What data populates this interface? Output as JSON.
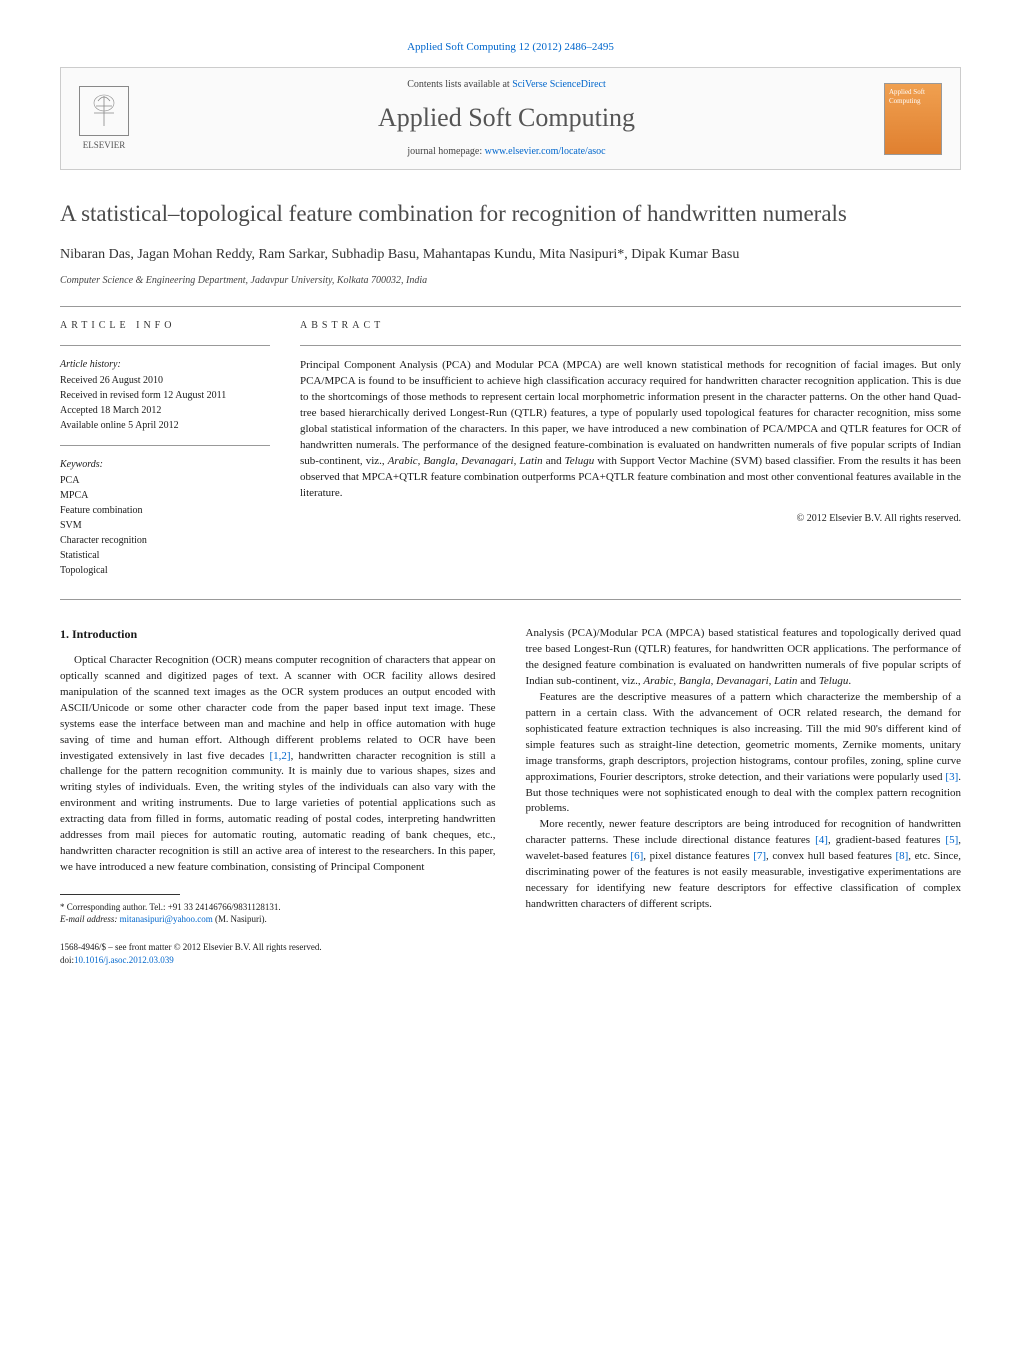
{
  "header": {
    "citation": "Applied Soft Computing 12 (2012) 2486–2495",
    "contents_prefix": "Contents lists available at ",
    "contents_link": "SciVerse ScienceDirect",
    "journal_name": "Applied Soft Computing",
    "homepage_prefix": "journal homepage: ",
    "homepage_url": "www.elsevier.com/locate/asoc",
    "publisher_name": "ELSEVIER",
    "cover_text": "Applied Soft Computing"
  },
  "article": {
    "title": "A statistical–topological feature combination for recognition of handwritten numerals",
    "authors": "Nibaran Das, Jagan Mohan Reddy, Ram Sarkar, Subhadip Basu, Mahantapas Kundu, Mita Nasipuri*, Dipak Kumar Basu",
    "affiliation": "Computer Science & Engineering Department, Jadavpur University, Kolkata 700032, India"
  },
  "info": {
    "heading": "ARTICLE INFO",
    "history_label": "Article history:",
    "received": "Received 26 August 2010",
    "revised": "Received in revised form 12 August 2011",
    "accepted": "Accepted 18 March 2012",
    "online": "Available online 5 April 2012",
    "keywords_label": "Keywords:",
    "keywords": [
      "PCA",
      "MPCA",
      "Feature combination",
      "SVM",
      "Character recognition",
      "Statistical",
      "Topological"
    ]
  },
  "abstract": {
    "heading": "ABSTRACT",
    "text": "Principal Component Analysis (PCA) and Modular PCA (MPCA) are well known statistical methods for recognition of facial images. But only PCA/MPCA is found to be insufficient to achieve high classification accuracy required for handwritten character recognition application. This is due to the shortcomings of those methods to represent certain local morphometric information present in the character patterns. On the other hand Quad-tree based hierarchically derived Longest-Run (QTLR) features, a type of popularly used topological features for character recognition, miss some global statistical information of the characters. In this paper, we have introduced a new combination of PCA/MPCA and QTLR features for OCR of handwritten numerals. The performance of the designed feature-combination is evaluated on handwritten numerals of five popular scripts of Indian sub-continent, viz., Arabic, Bangla, Devanagari, Latin and Telugu with Support Vector Machine (SVM) based classifier. From the results it has been observed that MPCA+QTLR feature combination outperforms PCA+QTLR feature combination and most other conventional features available in the literature.",
    "copyright": "© 2012 Elsevier B.V. All rights reserved."
  },
  "body": {
    "section1_heading": "1. Introduction",
    "col1_p1_a": "Optical Character Recognition (OCR) means computer recognition of characters that appear on optically scanned and digitized pages of text. A scanner with OCR facility allows desired manipulation of the scanned text images as the OCR system produces an output encoded with ASCII/Unicode or some other character code from the paper based input text image. These systems ease the interface between man and machine and help in office automation with huge saving of time and human effort. Although different problems related to OCR have been investigated extensively in last five decades ",
    "col1_ref1": "[1,2]",
    "col1_p1_b": ", handwritten character recognition is still a challenge for the pattern recognition community. It is mainly due to various shapes, sizes and writing styles of individuals. Even, the writing styles of the individuals can also vary with the environment and writing instruments. Due to large varieties of potential applications such as extracting data from filled in forms, automatic reading of postal codes, interpreting handwritten addresses from mail pieces for automatic routing, automatic reading of bank cheques, etc., handwritten character recognition is still an active area of interest to the researchers. In this paper, we have introduced a new feature combination, consisting of Principal Component",
    "col2_p1": "Analysis (PCA)/Modular PCA (MPCA) based statistical features and topologically derived quad tree based Longest-Run (QTLR) features, for handwritten OCR applications. The performance of the designed feature combination is evaluated on handwritten numerals of five popular scripts of Indian sub-continent, viz., Arabic, Bangla, Devanagari, Latin and Telugu.",
    "col2_p2_a": "Features are the descriptive measures of a pattern which characterize the membership of a pattern in a certain class. With the advancement of OCR related research, the demand for sophisticated feature extraction techniques is also increasing. Till the mid 90's different kind of simple features such as straight-line detection, geometric moments, Zernike moments, unitary image transforms, graph descriptors, projection histograms, contour profiles, zoning, spline curve approximations, Fourier descriptors, stroke detection, and their variations were popularly used ",
    "col2_ref3": "[3]",
    "col2_p2_b": ". But those techniques were not sophisticated enough to deal with the complex pattern recognition problems.",
    "col2_p3_a": "More recently, newer feature descriptors are being introduced for recognition of handwritten character patterns. These include directional distance features ",
    "col2_ref4": "[4]",
    "col2_p3_b": ", gradient-based features ",
    "col2_ref5": "[5]",
    "col2_p3_c": ", wavelet-based features ",
    "col2_ref6": "[6]",
    "col2_p3_d": ", pixel distance features ",
    "col2_ref7": "[7]",
    "col2_p3_e": ", convex hull based features ",
    "col2_ref8": "[8]",
    "col2_p3_f": ", etc. Since, discriminating power of the features is not easily measurable, investigative experimentations are necessary for identifying new feature descriptors for effective classification of complex handwritten characters of different scripts."
  },
  "footnote": {
    "corr": "* Corresponding author. Tel.: +91 33 24146766/9831128131.",
    "email_label": "E-mail address: ",
    "email": "mitanasipuri@yahoo.com",
    "email_suffix": " (M. Nasipuri)."
  },
  "bottom": {
    "issn": "1568-4946/$ – see front matter © 2012 Elsevier B.V. All rights reserved.",
    "doi_label": "doi:",
    "doi": "10.1016/j.asoc.2012.03.039"
  },
  "styling": {
    "link_color": "#0066cc",
    "text_color": "#1a1a1a",
    "title_color": "#4a4a4a",
    "background": "#ffffff",
    "body_fontsize_pt": 11,
    "title_fontsize_pt": 23,
    "journal_fontsize_pt": 26
  }
}
